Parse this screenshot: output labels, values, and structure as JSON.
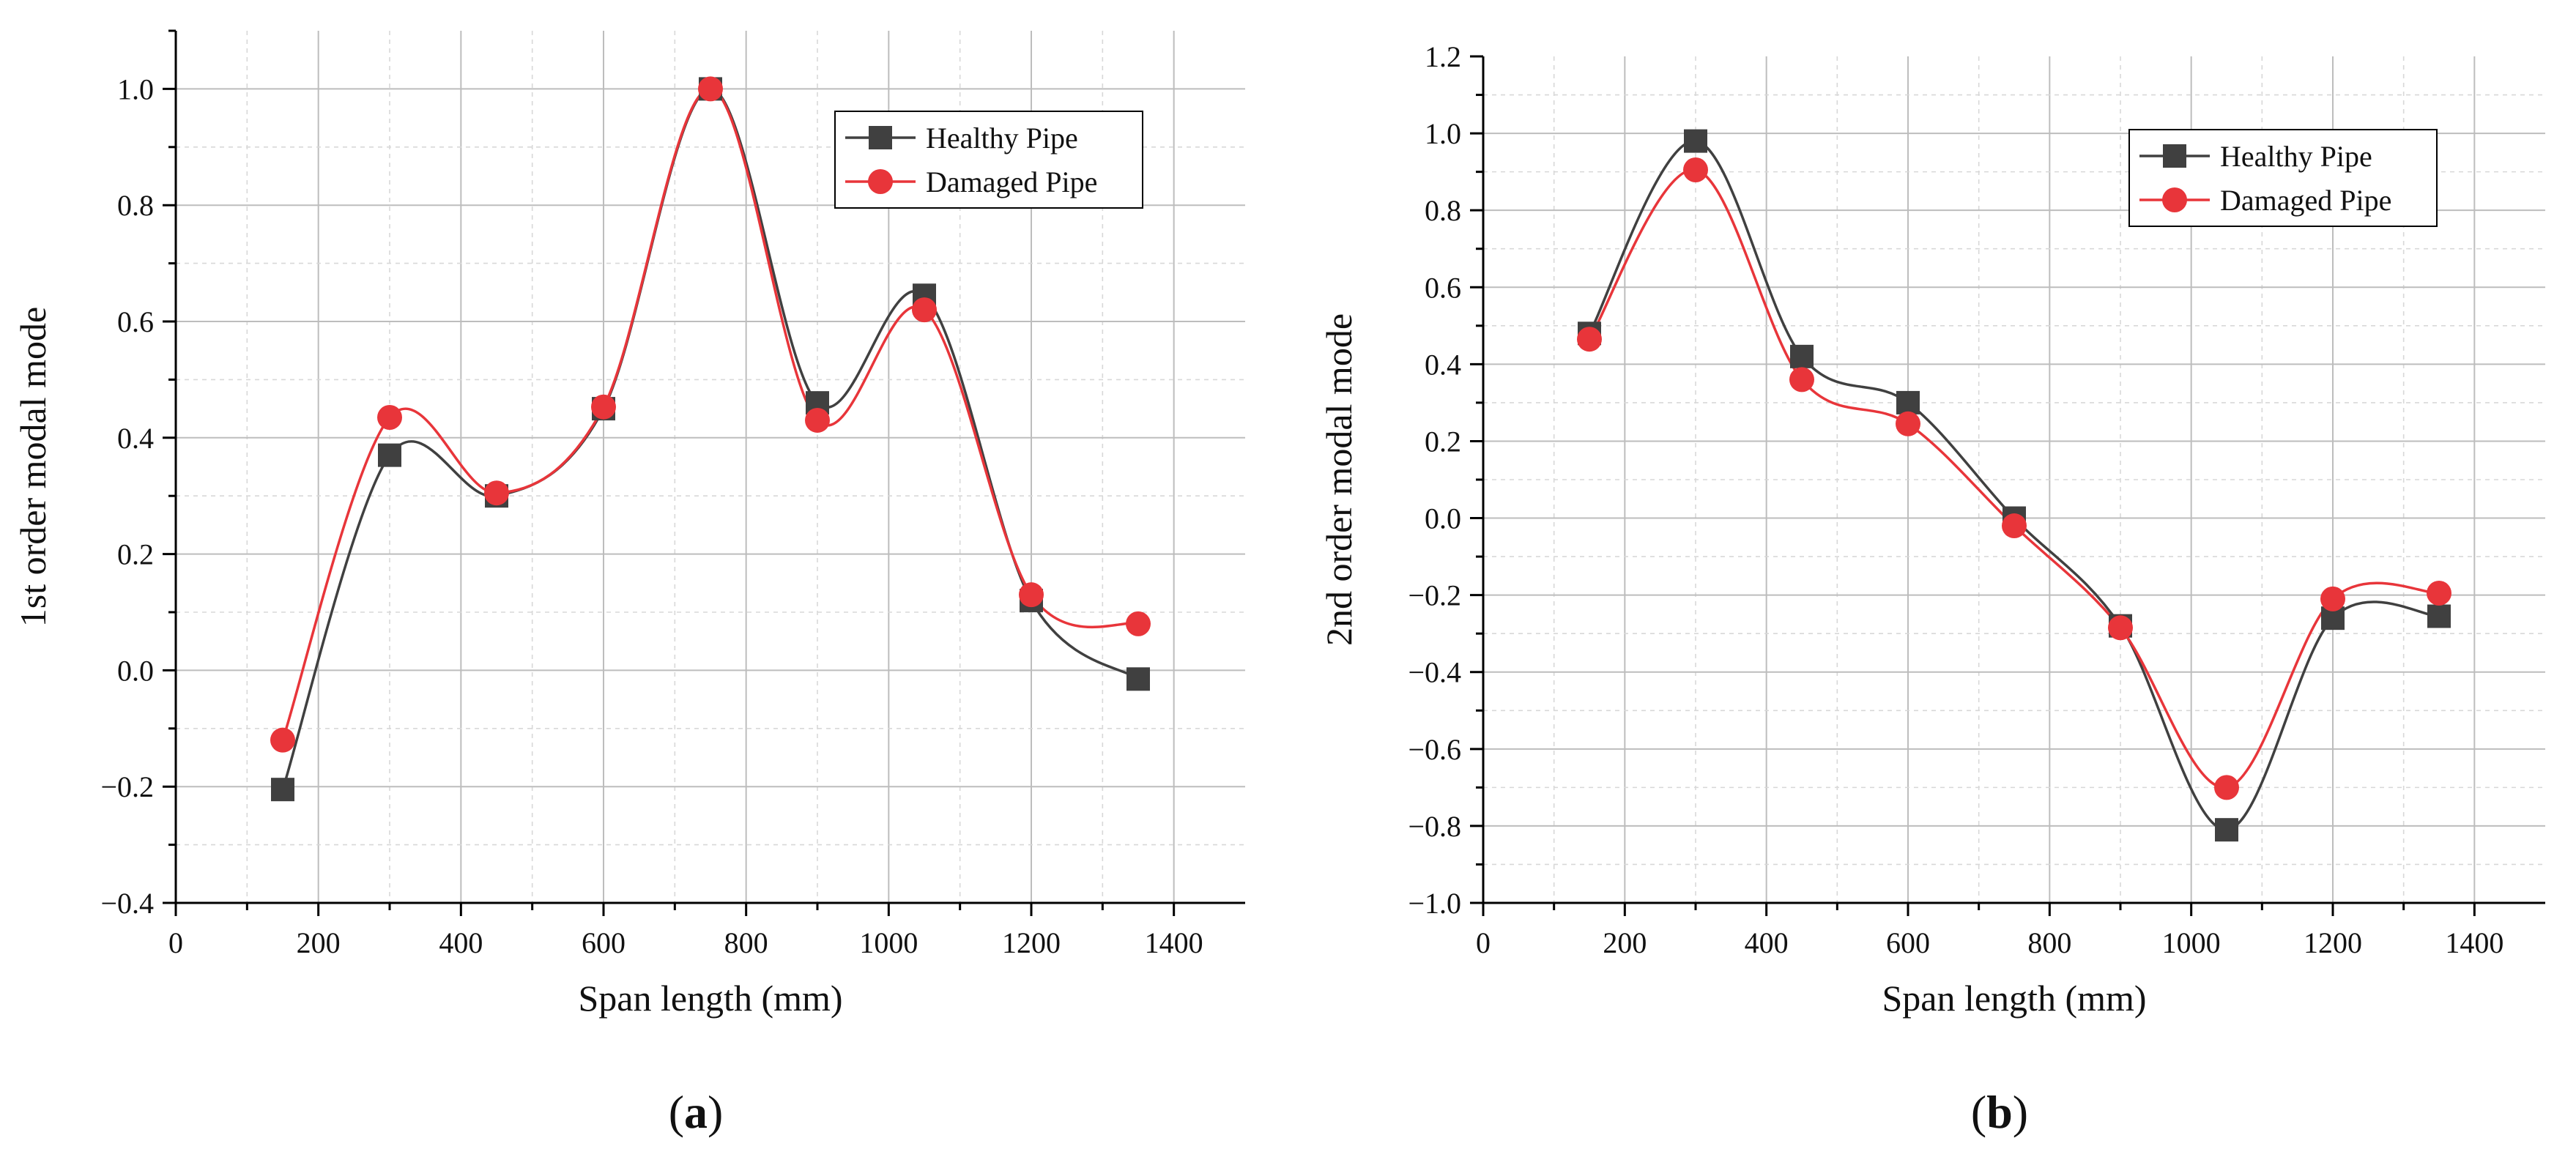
{
  "chart_data": [
    {
      "type": "line",
      "panel_label": "(a)",
      "panel_letter": "a",
      "xlabel": "Span length (mm)",
      "ylabel": "1st order modal mode",
      "xlim": [
        0,
        1500
      ],
      "ylim": [
        -0.4,
        1.1
      ],
      "x_ticks": [
        0,
        200,
        400,
        600,
        800,
        1000,
        1200,
        1400
      ],
      "x_tick_labels": [
        "0",
        "200",
        "400",
        "600",
        "800",
        "1000",
        "1200",
        "1400"
      ],
      "y_ticks": [
        -0.4,
        -0.2,
        0.0,
        0.2,
        0.4,
        0.6,
        0.8,
        1.0
      ],
      "y_tick_labels": [
        "−0.4",
        "−0.2",
        "0.0",
        "0.2",
        "0.4",
        "0.6",
        "0.8",
        "1.0"
      ],
      "grid": true,
      "legend_position": "top-right",
      "x": [
        150,
        300,
        450,
        600,
        750,
        900,
        1050,
        1200,
        1350
      ],
      "series": [
        {
          "name": "Healthy Pipe",
          "marker": "square",
          "color": "#404040",
          "values": [
            -0.205,
            0.37,
            0.3,
            0.45,
            1.0,
            0.46,
            0.645,
            0.12,
            -0.015
          ]
        },
        {
          "name": "Damaged Pipe",
          "marker": "circle",
          "color": "#e8353a",
          "values": [
            -0.12,
            0.435,
            0.305,
            0.453,
            1.0,
            0.43,
            0.62,
            0.13,
            0.08
          ]
        }
      ]
    },
    {
      "type": "line",
      "panel_label": "(b)",
      "panel_letter": "b",
      "xlabel": "Span length (mm)",
      "ylabel": "2nd order modal mode",
      "xlim": [
        0,
        1500
      ],
      "ylim": [
        -1.0,
        1.2
      ],
      "x_ticks": [
        0,
        200,
        400,
        600,
        800,
        1000,
        1200,
        1400
      ],
      "x_tick_labels": [
        "0",
        "200",
        "400",
        "600",
        "800",
        "1000",
        "1200",
        "1400"
      ],
      "y_ticks": [
        -1.0,
        -0.8,
        -0.6,
        -0.4,
        -0.2,
        0.0,
        0.2,
        0.4,
        0.6,
        0.8,
        1.0,
        1.2
      ],
      "y_tick_labels": [
        "−1.0",
        "−0.8",
        "−0.6",
        "−0.4",
        "−0.2",
        "0.0",
        "0.2",
        "0.4",
        "0.6",
        "0.8",
        "1.0",
        "1.2"
      ],
      "grid": true,
      "legend_position": "top-right",
      "x": [
        150,
        300,
        450,
        600,
        750,
        900,
        1050,
        1200,
        1350
      ],
      "series": [
        {
          "name": "Healthy Pipe",
          "marker": "square",
          "color": "#404040",
          "values": [
            0.48,
            0.98,
            0.42,
            0.3,
            0.0,
            -0.28,
            -0.81,
            -0.26,
            -0.255
          ]
        },
        {
          "name": "Damaged Pipe",
          "marker": "circle",
          "color": "#e8353a",
          "values": [
            0.465,
            0.905,
            0.36,
            0.245,
            -0.02,
            -0.285,
            -0.7,
            -0.21,
            -0.195
          ]
        }
      ]
    }
  ]
}
